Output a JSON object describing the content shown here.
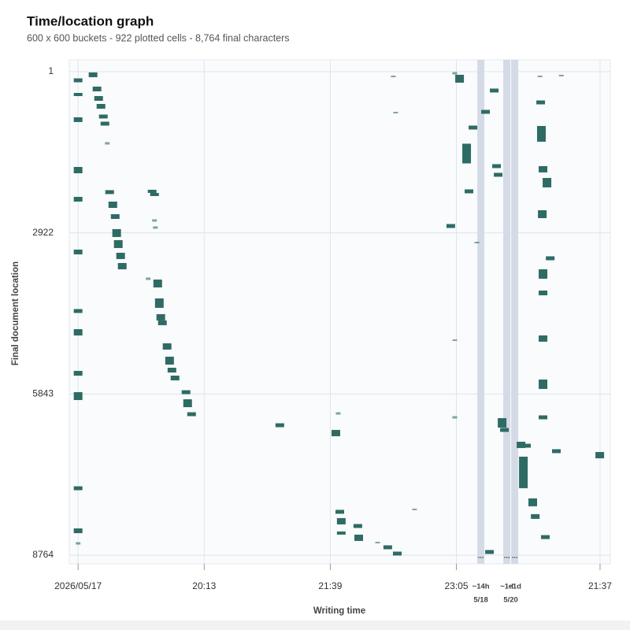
{
  "chart_data": {
    "type": "scatter",
    "title": "Time/location graph",
    "subtitle": "600 x 600 buckets - 922 plotted cells - 8,764 final characters",
    "x_label": "Writing time",
    "y_label": "Final document location",
    "color": "#2e6b64",
    "grid": true,
    "y_inverted": true,
    "xlim": [
      -6,
      363
    ],
    "ylim": [
      1,
      8764
    ],
    "xticks": [
      {
        "value": 0,
        "label": "2026/05/17"
      },
      {
        "value": 86,
        "label": "20:13"
      },
      {
        "value": 172,
        "label": "21:39"
      },
      {
        "value": 258,
        "label": "23:05"
      },
      {
        "value": 356,
        "label": "21:37"
      }
    ],
    "yticks": [
      1,
      2922,
      5843,
      8764
    ],
    "gaps": [
      {
        "x": 274.7,
        "marker": "...",
        "label": "~14h"
      },
      {
        "x": 292.4,
        "marker": "...",
        "label": "~1d"
      },
      {
        "x": 297.8,
        "marker": "...",
        "label": "~1d"
      }
    ],
    "date_labels": [
      {
        "x": 274.7,
        "label": "5/18"
      },
      {
        "x": 295.1,
        "label": "5/20"
      }
    ],
    "x": [
      0,
      0,
      0,
      0,
      0,
      0,
      0,
      0,
      0,
      0,
      0,
      0,
      0,
      10.2,
      12.9,
      14.0,
      15.6,
      17.2,
      18.3,
      19.9,
      21.5,
      23.7,
      25.3,
      26.3,
      27.4,
      29.0,
      30.1,
      50.5,
      52.1,
      52.1,
      52.7,
      47.8,
      54.3,
      55.4,
      56.4,
      57.5,
      60.7,
      62.4,
      64.0,
      66.1,
      73.6,
      74.7,
      77.4,
      137.6,
      175.8,
      177.4,
      178.5,
      179.5,
      179.5,
      190.8,
      191.4,
      204.3,
      211.2,
      217.7,
      215.0,
      216.6,
      229.5,
      254.2,
      256.9,
      260.2,
      256.9,
      256.9,
      265.0,
      266.6,
      269.3,
      272.0,
      277.9,
      280.6,
      283.8,
      285.4,
      286.5,
      289.2,
      290.8,
      302.1,
      303.7,
      305.8,
      310.1,
      311.8,
      315.5,
      316.0,
      317.1,
      319.8,
      316.6,
      317.1,
      317.1,
      317.1,
      317.1,
      317.1,
      322.0,
      326.2,
      355.8,
      318.7,
      329.6,
      315.0
    ],
    "y": [
      158,
      415,
      871,
      1785,
      2313,
      3269,
      4339,
      4725,
      5467,
      5881,
      7551,
      8322,
      8550,
      58,
      315,
      486,
      629,
      814,
      943,
      1300,
      2184,
      2413,
      2627,
      2926,
      3126,
      3340,
      3526,
      2170,
      2227,
      2698,
      2826,
      3754,
      3840,
      4196,
      4453,
      4553,
      4981,
      5238,
      5410,
      5553,
      5810,
      6010,
      6209,
      6409,
      6551,
      6195,
      7978,
      8149,
      8363,
      8235,
      8449,
      8535,
      8621,
      8735,
      87,
      743,
      7935,
      2798,
      30,
      129,
      4867,
      6266,
      1485,
      2170,
      1014,
      3098,
      729,
      8706,
      343,
      1713,
      1870,
      6366,
      6494,
      6765,
      7264,
      6780,
      7806,
      8063,
      558,
      1128,
      1770,
      2013,
      2584,
      3668,
      4011,
      4838,
      5666,
      6266,
      3383,
      6879,
      6951,
      8436,
      72,
      87
    ],
    "sizes": [
      71,
      57,
      86,
      114,
      86,
      86,
      71,
      114,
      86,
      143,
      71,
      86,
      43,
      86,
      86,
      86,
      86,
      71,
      71,
      43,
      71,
      114,
      86,
      143,
      143,
      114,
      114,
      57,
      57,
      43,
      43,
      43,
      143,
      171,
      114,
      86,
      114,
      143,
      86,
      86,
      71,
      143,
      71,
      71,
      114,
      43,
      71,
      114,
      57,
      71,
      114,
      29,
      71,
      71,
      29,
      29,
      29,
      71,
      43,
      143,
      29,
      43,
      357,
      71,
      71,
      29,
      71,
      71,
      71,
      71,
      71,
      171,
      71,
      114,
      571,
      71,
      143,
      86,
      71,
      285,
      114,
      171,
      143,
      171,
      86,
      114,
      171,
      71,
      71,
      71,
      114,
      71,
      29,
      29
    ]
  }
}
